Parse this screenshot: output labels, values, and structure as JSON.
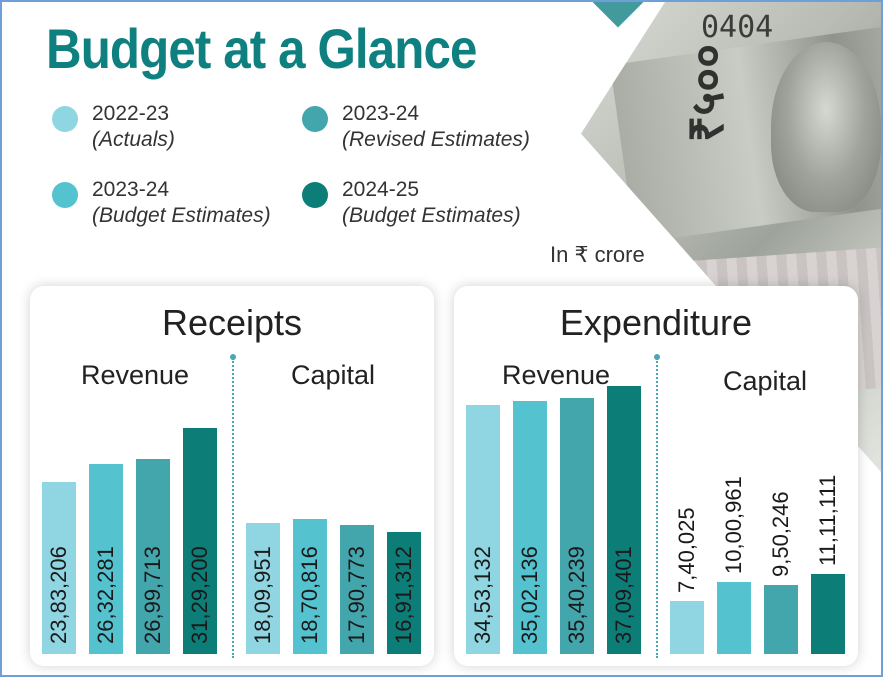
{
  "title": "Budget at a Glance",
  "unit": "In ₹ crore",
  "cash_serial": "0404",
  "cash_denomination": "₹५००",
  "legend": [
    {
      "year": "2022-23",
      "type": "(Actuals)",
      "color": "#8fd6e2"
    },
    {
      "year": "2023-24",
      "type": "(Revised Estimates)",
      "color": "#44a6ad"
    },
    {
      "year": "2023-24",
      "type": "(Budget Estimates)",
      "color": "#55c2cf"
    },
    {
      "year": "2024-25",
      "type": "(Budget Estimates)",
      "color": "#0d7d78"
    }
  ],
  "chart_data": [
    {
      "type": "bar",
      "title": "Receipts",
      "groups": [
        {
          "name": "Revenue",
          "values": [
            2383206,
            2632281,
            2699713,
            3129200
          ],
          "labels": [
            "23,83,206",
            "26,32,281",
            "26,99,713",
            "31,29,200"
          ]
        },
        {
          "name": "Capital",
          "values": [
            1809951,
            1870816,
            1790773,
            1691312
          ],
          "labels": [
            "18,09,951",
            "18,70,816",
            "17,90,773",
            "16,91,312"
          ]
        }
      ],
      "series_order": [
        "2022-23 (Actuals)",
        "2023-24 (Budget Estimates)",
        "2023-24 (Revised Estimates)",
        "2024-25 (Budget Estimates)"
      ],
      "colors": [
        "#8fd6e2",
        "#55c2cf",
        "#44a6ad",
        "#0d7d78"
      ]
    },
    {
      "type": "bar",
      "title": "Expenditure",
      "groups": [
        {
          "name": "Revenue",
          "values": [
            3453132,
            3502136,
            3540239,
            3709401
          ],
          "labels": [
            "34,53,132",
            "35,02,136",
            "35,40,239",
            "37,09,401"
          ]
        },
        {
          "name": "Capital",
          "values": [
            740025,
            1000961,
            950246,
            1111111
          ],
          "labels": [
            "7,40,025",
            "10,00,961",
            "9,50,246",
            "11,11,111"
          ]
        }
      ],
      "series_order": [
        "2022-23 (Actuals)",
        "2023-24 (Budget Estimates)",
        "2023-24 (Revised Estimates)",
        "2024-25 (Budget Estimates)"
      ],
      "colors": [
        "#8fd6e2",
        "#55c2cf",
        "#44a6ad",
        "#0d7d78"
      ]
    }
  ]
}
